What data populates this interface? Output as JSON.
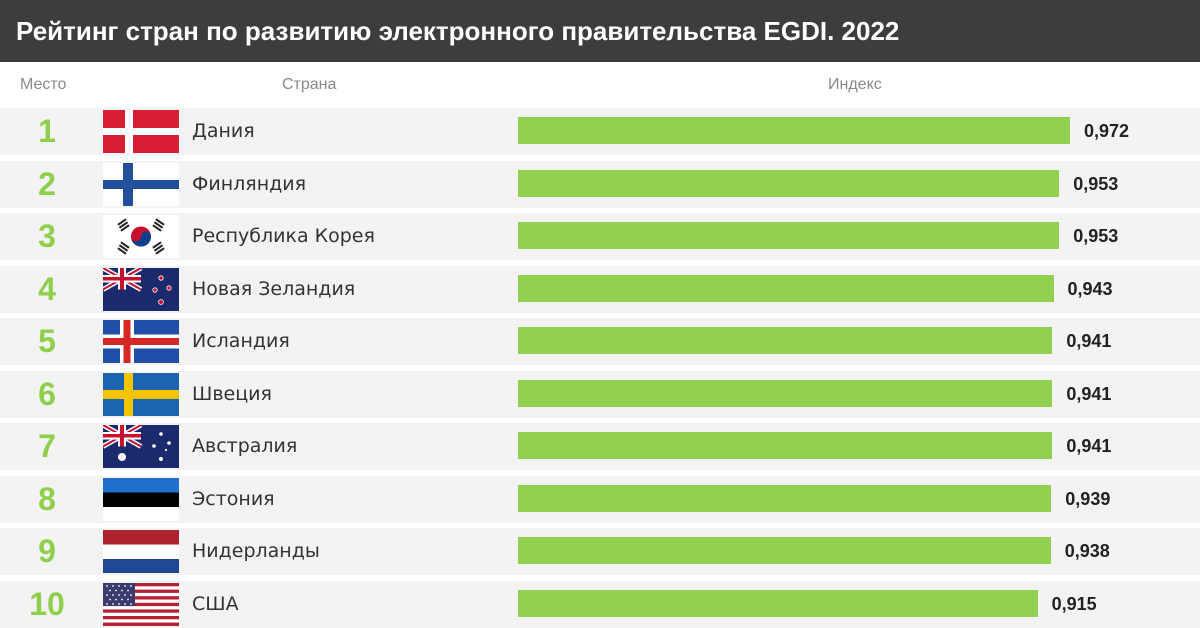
{
  "title": "Рейтинг стран по развитию электронного правительства EGDI. 2022",
  "columns": {
    "rank": "Место",
    "country": "Страна",
    "index": "Индекс"
  },
  "colors": {
    "bar": "#92d050",
    "rank": "#8fcf4c",
    "header_bg": "#3d3d3d",
    "row_bg": "#f3f3f3"
  },
  "chart_data": {
    "type": "bar",
    "orientation": "horizontal",
    "title": "Рейтинг стран по развитию электронного правительства EGDI. 2022",
    "xlabel": "Индекс",
    "ylabel": "Страна",
    "xlim": [
      0,
      1
    ],
    "grid": false,
    "rows": [
      {
        "rank": "1",
        "country": "Дания",
        "value": 0.972,
        "label": "0,972",
        "flag": "flag-denmark-icon"
      },
      {
        "rank": "2",
        "country": "Финляндия",
        "value": 0.953,
        "label": "0,953",
        "flag": "flag-finland-icon"
      },
      {
        "rank": "3",
        "country": "Республика Корея",
        "value": 0.953,
        "label": "0,953",
        "flag": "flag-korea-icon"
      },
      {
        "rank": "4",
        "country": "Новая Зеландия",
        "value": 0.943,
        "label": "0,943",
        "flag": "flag-new-zealand-icon"
      },
      {
        "rank": "5",
        "country": "Исландия",
        "value": 0.941,
        "label": "0,941",
        "flag": "flag-iceland-icon"
      },
      {
        "rank": "6",
        "country": "Швеция",
        "value": 0.941,
        "label": "0,941",
        "flag": "flag-sweden-icon"
      },
      {
        "rank": "7",
        "country": "Австралия",
        "value": 0.941,
        "label": "0,941",
        "flag": "flag-australia-icon"
      },
      {
        "rank": "8",
        "country": "Эстония",
        "value": 0.939,
        "label": "0,939",
        "flag": "flag-estonia-icon"
      },
      {
        "rank": "9",
        "country": "Нидерланды",
        "value": 0.938,
        "label": "0,938",
        "flag": "flag-netherlands-icon"
      },
      {
        "rank": "10",
        "country": "США",
        "value": 0.915,
        "label": "0,915",
        "flag": "flag-usa-icon"
      }
    ]
  }
}
